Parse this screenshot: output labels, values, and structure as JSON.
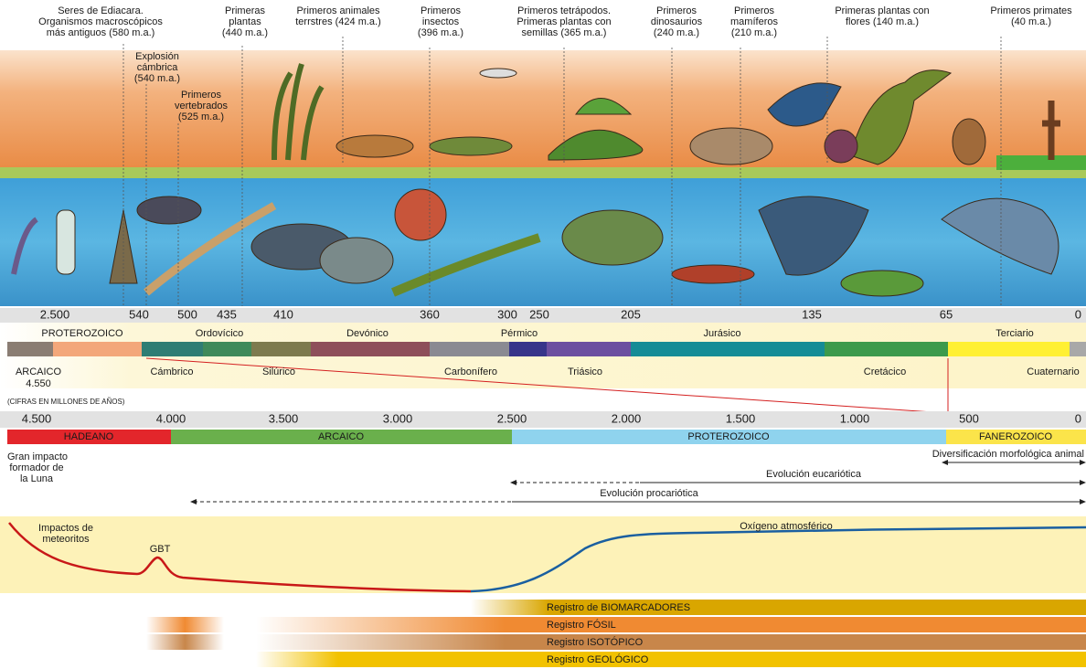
{
  "events": [
    {
      "lines": [
        "Seres de Ediacara.",
        "Organismos macroscópicos",
        "más antiguos (580 m.a.)"
      ]
    },
    {
      "lines": [
        "Explosión",
        "cámbrica",
        "(540 m.a.)"
      ]
    },
    {
      "lines": [
        "Primeros",
        "vertebrados",
        "(525 m.a.)"
      ]
    },
    {
      "lines": [
        "Primeras",
        "plantas",
        "(440 m.a.)"
      ]
    },
    {
      "lines": [
        "Primeros animales",
        "terrstres (424 m.a.)"
      ]
    },
    {
      "lines": [
        "Primeros",
        "insectos",
        "(396 m.a.)"
      ]
    },
    {
      "lines": [
        "Primeros tetrápodos.",
        "Primeras plantas con",
        "semillas (365 m.a.)"
      ]
    },
    {
      "lines": [
        "Primeros",
        "dinosaurios",
        "(240 m.a.)"
      ]
    },
    {
      "lines": [
        "Primeros",
        "mamíferos",
        "(210 m.a.)"
      ]
    },
    {
      "lines": [
        "Primeras plantas con",
        "flores (140 m.a.)"
      ]
    },
    {
      "lines": [
        "Primeros primates",
        "(40 m.a.)"
      ]
    }
  ],
  "recent_scale": [
    "2.500",
    "540",
    "500",
    "435",
    "410",
    "360",
    "300",
    "250",
    "205",
    "135",
    "65",
    "0"
  ],
  "periods_upper": [
    "PROTEROZOICO",
    "Ordovícico",
    "Devónico",
    "Pérmico",
    "Jurásico",
    "Terciario"
  ],
  "periods_lower": [
    "ARCAICO",
    "Cámbrico",
    "Silúrico",
    "Carbonífero",
    "Triásico",
    "Cretácico",
    "Cuaternario"
  ],
  "archaic_start": "4.550",
  "units_note": "(CIFRAS EN MILLONES DE AÑOS)",
  "full_scale": [
    "4.500",
    "4.000",
    "3.500",
    "3.000",
    "2.500",
    "2.000",
    "1.500",
    "1.000",
    "500",
    "0"
  ],
  "eons": [
    "HADEANO",
    "ARCAICO",
    "PROTEROZOICO",
    "FANEROZOICO"
  ],
  "moon_impact": [
    "Gran impacto",
    "formador de",
    "la Luna"
  ],
  "arrows": {
    "animal": "Diversificación morfológica animal",
    "eukaryotic": "Evolución eucariótica",
    "prokaryotic": "Evolución procariótica"
  },
  "curve": {
    "impacts": [
      "Impactos de",
      "meteoritos"
    ],
    "gbt": "GBT",
    "oxygen": "Oxígeno atmosférico"
  },
  "records": [
    "Registro de BIOMARCADORES",
    "Registro FÓSIL",
    "Registro ISOTÓPICO",
    "Registro GEOLÓGICO"
  ]
}
